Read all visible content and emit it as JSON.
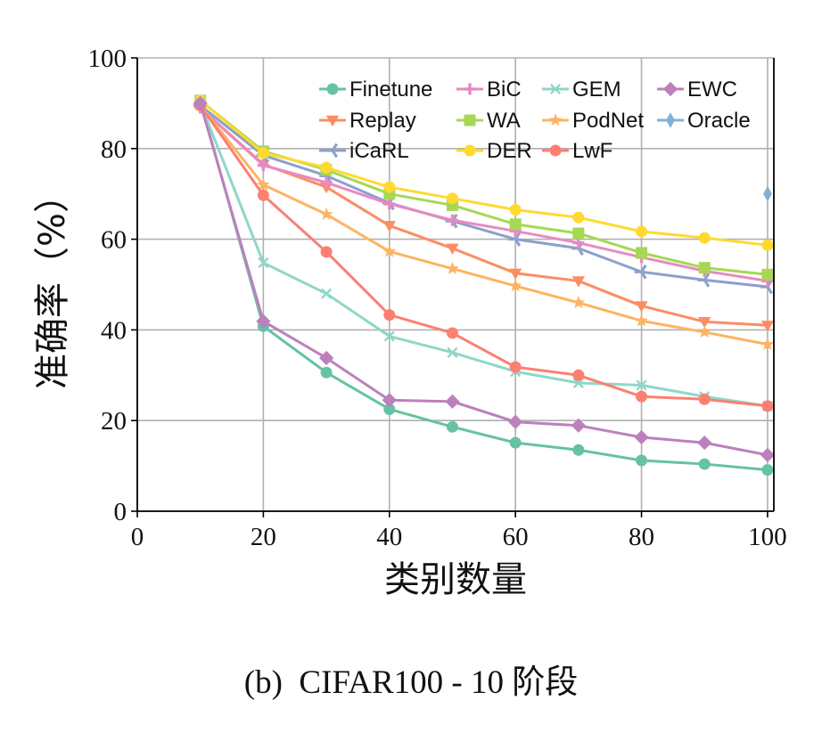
{
  "chart_data": {
    "type": "line",
    "xlabel": "类别数量",
    "ylabel": "准确率（%）",
    "caption": "(b)  CIFAR100 - 10 阶段",
    "xlim": [
      0,
      101
    ],
    "ylim": [
      0,
      100
    ],
    "xticks": [
      0,
      20,
      40,
      60,
      80,
      100
    ],
    "yticks": [
      0,
      20,
      40,
      60,
      80,
      100
    ],
    "grid": true,
    "legend_position": "top-right",
    "x": [
      10,
      20,
      30,
      40,
      50,
      60,
      70,
      80,
      90,
      100
    ],
    "series": [
      {
        "name": "Finetune",
        "color": "#66c2a5",
        "marker": "circle",
        "values": [
          90.5,
          40.8,
          30.6,
          22.5,
          18.6,
          15.1,
          13.5,
          11.2,
          10.4,
          9.1
        ]
      },
      {
        "name": "Replay",
        "color": "#fc8d62",
        "marker": "triangle-down",
        "values": [
          89.0,
          76.5,
          71.5,
          63.0,
          58.0,
          52.5,
          50.8,
          45.3,
          41.8,
          41.0
        ]
      },
      {
        "name": "iCaRL",
        "color": "#8da0cb",
        "marker": "tri-left",
        "values": [
          89.5,
          78.5,
          74.0,
          68.0,
          64.0,
          60.0,
          58.0,
          52.8,
          51.0,
          49.5
        ]
      },
      {
        "name": "BiC",
        "color": "#e78ac3",
        "marker": "plus",
        "values": [
          89.0,
          76.3,
          72.5,
          67.8,
          64.2,
          61.8,
          59.2,
          56.0,
          53.0,
          50.8
        ]
      },
      {
        "name": "WA",
        "color": "#a6d854",
        "marker": "square",
        "values": [
          90.6,
          79.4,
          75.3,
          70.0,
          67.5,
          63.3,
          61.3,
          57.0,
          53.7,
          52.2
        ]
      },
      {
        "name": "DER",
        "color": "#ffd92f",
        "marker": "circle",
        "values": [
          90.6,
          79.0,
          75.8,
          71.5,
          69.0,
          66.5,
          64.8,
          61.7,
          60.3,
          58.7
        ]
      },
      {
        "name": "GEM",
        "color": "#8fd7c7",
        "marker": "x",
        "values": [
          90.0,
          54.8,
          48.0,
          38.6,
          35.0,
          30.8,
          28.3,
          27.8,
          25.3,
          23.2
        ]
      },
      {
        "name": "PodNet",
        "color": "#fdb462",
        "marker": "star",
        "values": [
          89.5,
          72.0,
          65.5,
          57.3,
          53.5,
          49.7,
          46.0,
          42.0,
          39.5,
          36.8
        ]
      },
      {
        "name": "LwF",
        "color": "#fb8072",
        "marker": "circle",
        "values": [
          89.5,
          69.7,
          57.2,
          43.3,
          39.3,
          31.8,
          30.0,
          25.3,
          24.7,
          23.2
        ]
      },
      {
        "name": "EWC",
        "color": "#bc80bd",
        "marker": "diamond",
        "values": [
          90.0,
          41.9,
          33.8,
          24.5,
          24.2,
          19.7,
          18.9,
          16.3,
          15.1,
          12.4
        ]
      },
      {
        "name": "Oracle",
        "color": "#80b1d3",
        "marker": "thin-diamond",
        "x": [
          100
        ],
        "values": [
          70.0
        ]
      }
    ]
  }
}
